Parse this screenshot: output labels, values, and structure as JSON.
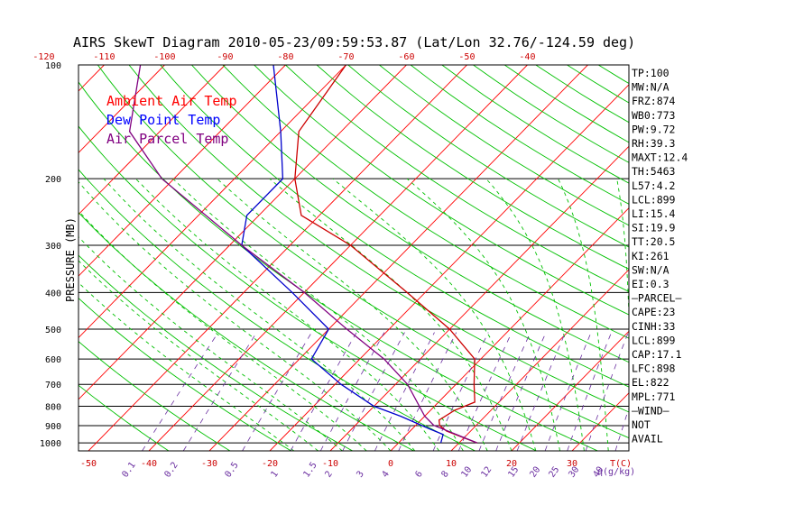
{
  "chart_data": {
    "type": "line",
    "title": "AIRS SkewT Diagram 2010-05-23/09:59:53.87 (Lat/Lon 32.76/-124.59 deg)",
    "ylabel": "PRESSURE (MB)",
    "ylim": [
      1050,
      100
    ],
    "y_scale": "log",
    "pressure_ticks": [
      "100",
      "200",
      "300",
      "400",
      "500",
      "600",
      "700",
      "800",
      "900",
      "1000"
    ],
    "top_temp_ticks": [
      "-120",
      "-110",
      "-100",
      "-90",
      "-80",
      "-70",
      "-60",
      "-50",
      "-40"
    ],
    "bottom_temp_ticks": [
      "-50",
      "-40",
      "-30",
      "-20",
      "-10",
      "0",
      "10",
      "20",
      "30"
    ],
    "bottom_temp_unit": "T(C)",
    "mixing_ratio_ticks": [
      "0.1",
      "0.2",
      "0.5",
      "1",
      "1.5",
      "2",
      "3",
      "4",
      "6",
      "8",
      "10",
      "12",
      "15",
      "20",
      "25",
      "30",
      "40"
    ],
    "mixing_ratio_unit": "q(g/kg)",
    "legend": [
      {
        "label": "Ambient Air Temp",
        "color": "#ff0000"
      },
      {
        "label": "Dew Point Temp",
        "color": "#0000ff"
      },
      {
        "label": "Air Parcel Temp",
        "color": "#800080"
      }
    ],
    "colors": {
      "isotherm": "#ff0000",
      "dry_adiabat": "#00c000",
      "moist_adiabat": "#00c000",
      "mixing_ratio": "#6a2ea0",
      "isobar": "#000000"
    },
    "series": [
      {
        "name": "Ambient Air Temp",
        "color": "#cc0000",
        "points": [
          [
            1000,
            13
          ],
          [
            960,
            9
          ],
          [
            930,
            6
          ],
          [
            900,
            4
          ],
          [
            870,
            3
          ],
          [
            820,
            4
          ],
          [
            780,
            6
          ],
          [
            700,
            3
          ],
          [
            600,
            -1
          ],
          [
            500,
            -10
          ],
          [
            400,
            -23
          ],
          [
            300,
            -40
          ],
          [
            250,
            -53
          ],
          [
            200,
            -60
          ],
          [
            150,
            -67
          ],
          [
            100,
            -70
          ]
        ]
      },
      {
        "name": "Dew Point Temp",
        "color": "#0000cc",
        "points": [
          [
            1000,
            7
          ],
          [
            950,
            6
          ],
          [
            920,
            3
          ],
          [
            850,
            -4
          ],
          [
            800,
            -10
          ],
          [
            700,
            -19
          ],
          [
            600,
            -28
          ],
          [
            500,
            -30
          ],
          [
            400,
            -42
          ],
          [
            300,
            -58
          ],
          [
            250,
            -62
          ],
          [
            200,
            -62
          ],
          [
            150,
            -70
          ],
          [
            100,
            -82
          ]
        ]
      },
      {
        "name": "Air Parcel Temp",
        "color": "#800080",
        "points": [
          [
            1000,
            13
          ],
          [
            899,
            3
          ],
          [
            850,
            0
          ],
          [
            700,
            -8
          ],
          [
            600,
            -16
          ],
          [
            500,
            -27
          ],
          [
            400,
            -40
          ],
          [
            300,
            -58
          ],
          [
            200,
            -82
          ],
          [
            150,
            -95
          ],
          [
            100,
            -104
          ]
        ]
      }
    ],
    "wind_barb_zone_note": ""
  },
  "indices": [
    "TP:100",
    "MW:N/A",
    "FRZ:874",
    "WB0:773",
    "PW:9.72",
    "RH:39.3",
    "MAXT:12.4",
    "TH:5463",
    "L57:4.2",
    "LCL:899",
    "LI:15.4",
    "SI:19.9",
    "TT:20.5",
    "KI:261",
    "SW:N/A",
    "EI:0.3",
    "—PARCEL—",
    "CAPE:23",
    "CINH:33",
    "LCL:899",
    "CAP:17.1",
    "LFC:898",
    "EL:822",
    "MPL:771",
    "—WIND—",
    "NOT",
    "AVAIL"
  ]
}
